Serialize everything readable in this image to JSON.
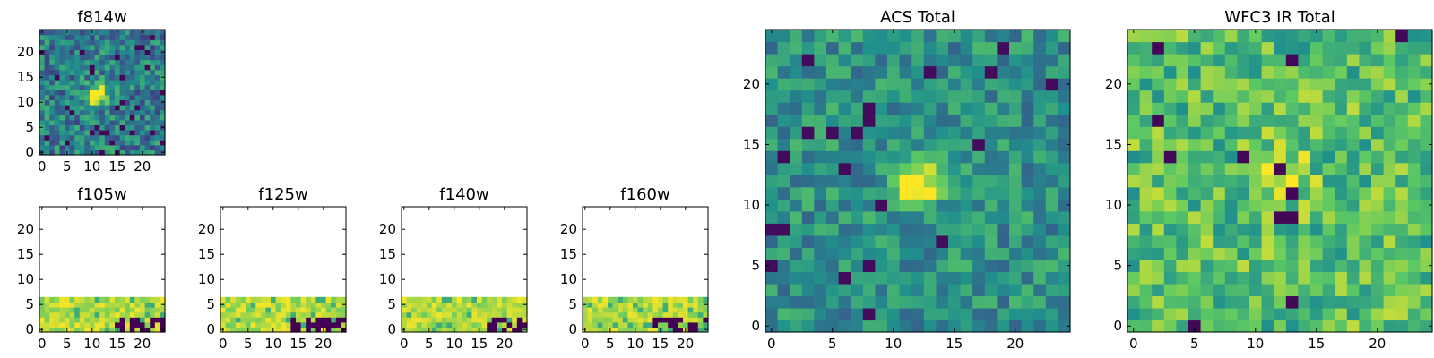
{
  "figure": {
    "colormap": "viridis",
    "colormap_stops": [
      "#440154",
      "#3b528b",
      "#21918c",
      "#5ec962",
      "#fde725"
    ]
  },
  "chart_data": [
    {
      "type": "heatmap",
      "title": "f814w",
      "grid_size": [
        25,
        25
      ],
      "xlim": [
        0,
        24
      ],
      "ylim": [
        0,
        24
      ],
      "xticks": [
        "0",
        "5",
        "10",
        "15",
        "20"
      ],
      "yticks": [
        "0",
        "5",
        "10",
        "15",
        "20"
      ],
      "features": "noisy background with compact bright source centred near (11, 11)",
      "blob_center": [
        11,
        11
      ],
      "blank_above_row": null
    },
    {
      "type": "heatmap",
      "title": "f105w",
      "grid_size": [
        25,
        25
      ],
      "xlim": [
        0,
        24
      ],
      "ylim": [
        0,
        24
      ],
      "xticks": [
        "0",
        "5",
        "10",
        "15",
        "20"
      ],
      "yticks": [
        "0",
        "5",
        "10",
        "15",
        "20"
      ],
      "features": "only rows 0-6 contain data (bright yellow-green), rows above are empty; dark pixels near x 15-23, y 0-2",
      "blank_above_row": 6
    },
    {
      "type": "heatmap",
      "title": "f125w",
      "grid_size": [
        25,
        25
      ],
      "xlim": [
        0,
        24
      ],
      "ylim": [
        0,
        24
      ],
      "xticks": [
        "0",
        "5",
        "10",
        "15",
        "20"
      ],
      "yticks": [
        "0",
        "5",
        "10",
        "15",
        "20"
      ],
      "features": "only rows 0-6 contain data; dark pixels near x 14-24, y 0-3",
      "blank_above_row": 6
    },
    {
      "type": "heatmap",
      "title": "f140w",
      "grid_size": [
        25,
        25
      ],
      "xlim": [
        0,
        24
      ],
      "ylim": [
        0,
        24
      ],
      "xticks": [
        "0",
        "5",
        "10",
        "15",
        "20"
      ],
      "yticks": [
        "0",
        "5",
        "10",
        "15",
        "20"
      ],
      "features": "only rows 0-6 contain data; dark pixels near x 17-24, y 0-2",
      "blank_above_row": 6
    },
    {
      "type": "heatmap",
      "title": "f160w",
      "grid_size": [
        25,
        25
      ],
      "xlim": [
        0,
        24
      ],
      "ylim": [
        0,
        24
      ],
      "xticks": [
        "0",
        "5",
        "10",
        "15",
        "20"
      ],
      "yticks": [
        "0",
        "5",
        "10",
        "15",
        "20"
      ],
      "features": "only rows 0-6 contain data; dark pixels near x 14-24, y 0-2",
      "blank_above_row": 6
    },
    {
      "type": "heatmap",
      "title": "ACS Total",
      "grid_size": [
        25,
        25
      ],
      "xlim": [
        0,
        24
      ],
      "ylim": [
        0,
        24
      ],
      "xticks": [
        "0",
        "5",
        "10",
        "15",
        "20"
      ],
      "yticks": [
        "0",
        "5",
        "10",
        "15",
        "20"
      ],
      "features": "teal/green noise with bright yellow source spanning x 10-13, y 10-13",
      "blob_center": [
        12,
        11.5
      ],
      "blank_above_row": null
    },
    {
      "type": "heatmap",
      "title": "WFC3 IR Total",
      "grid_size": [
        25,
        25
      ],
      "xlim": [
        0,
        24
      ],
      "ylim": [
        0,
        24
      ],
      "xticks": [
        "0",
        "5",
        "10",
        "15",
        "20"
      ],
      "yticks": [
        "0",
        "5",
        "10",
        "15",
        "20"
      ],
      "features": "green/yellow-green noise with moderately bright source near x 10-14, y 11-14",
      "blob_center": [
        12,
        12.5
      ],
      "blank_above_row": null
    }
  ]
}
